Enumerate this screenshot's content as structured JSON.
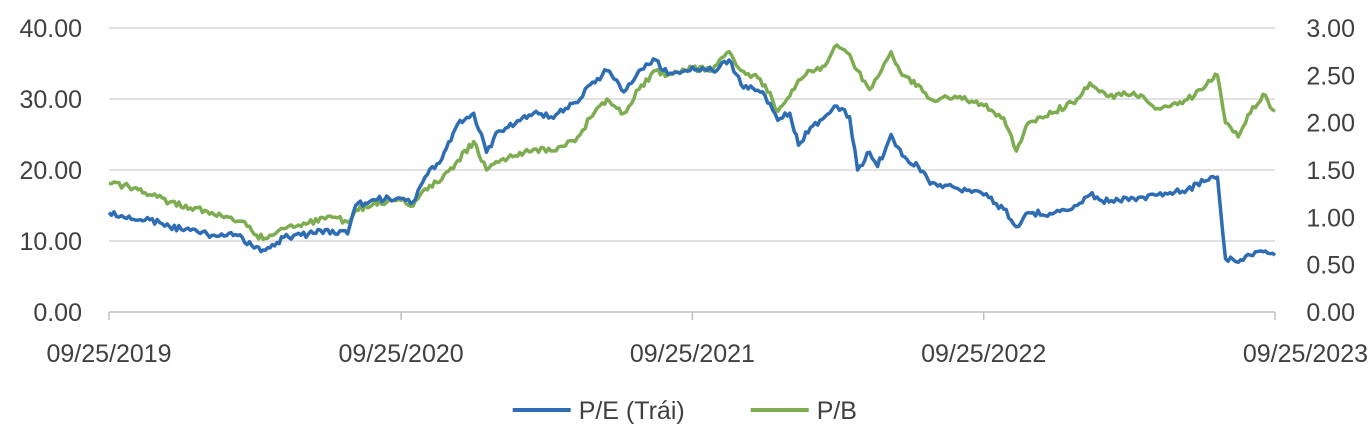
{
  "chart_data": {
    "type": "line",
    "title": "",
    "xlabel": "",
    "ylabel": "",
    "ylim": [
      0,
      40
    ],
    "y2lim": [
      0,
      3
    ],
    "grid": true,
    "legend_position": "bottom",
    "x_tick_labels": [
      "09/25/2019",
      "09/25/2020",
      "09/25/2021",
      "09/25/2022",
      "09/25/2023"
    ],
    "y_tick_labels": [
      "0.00",
      "10.00",
      "20.00",
      "30.00",
      "40.00"
    ],
    "y2_tick_labels": [
      "0.00",
      "0.50",
      "1.00",
      "1.50",
      "2.00",
      "2.50",
      "3.00"
    ],
    "series": [
      {
        "name": "P/E (Trái)",
        "axis": "left",
        "color": "#2E6DB4",
        "points": [
          [
            "2019-09-25",
            14.0
          ],
          [
            "2019-10-20",
            13.5
          ],
          [
            "2019-11-15",
            13.0
          ],
          [
            "2019-12-10",
            12.0
          ],
          [
            "2020-01-05",
            11.5
          ],
          [
            "2020-02-01",
            10.8
          ],
          [
            "2020-02-25",
            11.2
          ],
          [
            "2020-03-10",
            10.5
          ],
          [
            "2020-03-25",
            9.0
          ],
          [
            "2020-04-08",
            8.7
          ],
          [
            "2020-05-01",
            10.5
          ],
          [
            "2020-06-01",
            11.0
          ],
          [
            "2020-07-01",
            11.5
          ],
          [
            "2020-07-20",
            11.0
          ],
          [
            "2020-07-30",
            15.0
          ],
          [
            "2020-08-20",
            15.8
          ],
          [
            "2020-09-25",
            16.0
          ],
          [
            "2020-10-10",
            15.5
          ],
          [
            "2020-10-25",
            19.0
          ],
          [
            "2020-11-15",
            21.5
          ],
          [
            "2020-12-05",
            26.5
          ],
          [
            "2020-12-25",
            28.0
          ],
          [
            "2021-01-10",
            22.5
          ],
          [
            "2021-01-25",
            25.5
          ],
          [
            "2021-02-15",
            26.5
          ],
          [
            "2021-03-10",
            28.0
          ],
          [
            "2021-04-01",
            27.5
          ],
          [
            "2021-05-01",
            29.5
          ],
          [
            "2021-05-20",
            32.0
          ],
          [
            "2021-06-10",
            34.0
          ],
          [
            "2021-07-01",
            31.0
          ],
          [
            "2021-07-20",
            34.0
          ],
          [
            "2021-08-10",
            35.5
          ],
          [
            "2021-08-25",
            33.5
          ],
          [
            "2021-09-25",
            34.5
          ],
          [
            "2021-10-20",
            34.0
          ],
          [
            "2021-11-10",
            35.5
          ],
          [
            "2021-11-25",
            32.0
          ],
          [
            "2021-12-10",
            31.5
          ],
          [
            "2021-12-25",
            30.5
          ],
          [
            "2022-01-10",
            27.0
          ],
          [
            "2022-01-25",
            28.0
          ],
          [
            "2022-02-05",
            23.5
          ],
          [
            "2022-02-20",
            26.0
          ],
          [
            "2022-03-10",
            27.5
          ],
          [
            "2022-03-25",
            29.0
          ],
          [
            "2022-04-10",
            27.5
          ],
          [
            "2022-04-20",
            20.0
          ],
          [
            "2022-05-05",
            22.5
          ],
          [
            "2022-05-15",
            20.5
          ],
          [
            "2022-06-01",
            25.0
          ],
          [
            "2022-06-15",
            22.0
          ],
          [
            "2022-07-05",
            20.5
          ],
          [
            "2022-07-20",
            18.0
          ],
          [
            "2022-08-20",
            17.5
          ],
          [
            "2022-09-25",
            16.5
          ],
          [
            "2022-10-20",
            14.5
          ],
          [
            "2022-11-05",
            12.0
          ],
          [
            "2022-11-20",
            14.0
          ],
          [
            "2022-12-20",
            13.8
          ],
          [
            "2023-01-20",
            15.0
          ],
          [
            "2023-02-05",
            16.5
          ],
          [
            "2023-03-01",
            15.5
          ],
          [
            "2023-04-01",
            16.0
          ],
          [
            "2023-05-01",
            16.5
          ],
          [
            "2023-06-01",
            17.0
          ],
          [
            "2023-07-01",
            18.5
          ],
          [
            "2023-07-15",
            19.0
          ],
          [
            "2023-07-25",
            7.5
          ],
          [
            "2023-08-10",
            7.0
          ],
          [
            "2023-08-25",
            8.0
          ],
          [
            "2023-09-10",
            8.5
          ],
          [
            "2023-09-25",
            8.0
          ]
        ]
      },
      {
        "name": "P/B",
        "axis": "right",
        "color": "#7EAD51",
        "points": [
          [
            "2019-09-25",
            1.36
          ],
          [
            "2019-10-20",
            1.32
          ],
          [
            "2019-11-15",
            1.24
          ],
          [
            "2019-12-10",
            1.16
          ],
          [
            "2020-01-05",
            1.1
          ],
          [
            "2020-02-01",
            1.05
          ],
          [
            "2020-02-25",
            1.0
          ],
          [
            "2020-03-10",
            0.96
          ],
          [
            "2020-03-25",
            0.82
          ],
          [
            "2020-04-08",
            0.78
          ],
          [
            "2020-05-01",
            0.88
          ],
          [
            "2020-06-01",
            0.94
          ],
          [
            "2020-07-01",
            1.0
          ],
          [
            "2020-07-20",
            0.95
          ],
          [
            "2020-07-30",
            1.08
          ],
          [
            "2020-08-20",
            1.13
          ],
          [
            "2020-09-25",
            1.18
          ],
          [
            "2020-10-10",
            1.12
          ],
          [
            "2020-10-25",
            1.3
          ],
          [
            "2020-11-15",
            1.4
          ],
          [
            "2020-12-05",
            1.6
          ],
          [
            "2020-12-25",
            1.8
          ],
          [
            "2021-01-10",
            1.5
          ],
          [
            "2021-01-25",
            1.58
          ],
          [
            "2021-02-15",
            1.65
          ],
          [
            "2021-03-10",
            1.72
          ],
          [
            "2021-04-01",
            1.7
          ],
          [
            "2021-05-01",
            1.8
          ],
          [
            "2021-05-20",
            2.05
          ],
          [
            "2021-06-10",
            2.25
          ],
          [
            "2021-07-01",
            2.1
          ],
          [
            "2021-07-20",
            2.35
          ],
          [
            "2021-08-10",
            2.55
          ],
          [
            "2021-08-25",
            2.5
          ],
          [
            "2021-09-25",
            2.58
          ],
          [
            "2021-10-20",
            2.55
          ],
          [
            "2021-11-10",
            2.75
          ],
          [
            "2021-11-25",
            2.55
          ],
          [
            "2021-12-10",
            2.5
          ],
          [
            "2021-12-25",
            2.4
          ],
          [
            "2022-01-10",
            2.12
          ],
          [
            "2022-01-25",
            2.28
          ],
          [
            "2022-02-05",
            2.45
          ],
          [
            "2022-02-20",
            2.55
          ],
          [
            "2022-03-10",
            2.6
          ],
          [
            "2022-03-25",
            2.82
          ],
          [
            "2022-04-10",
            2.72
          ],
          [
            "2022-04-20",
            2.55
          ],
          [
            "2022-05-05",
            2.35
          ],
          [
            "2022-05-15",
            2.48
          ],
          [
            "2022-06-01",
            2.75
          ],
          [
            "2022-06-15",
            2.5
          ],
          [
            "2022-07-05",
            2.4
          ],
          [
            "2022-07-20",
            2.25
          ],
          [
            "2022-08-20",
            2.28
          ],
          [
            "2022-09-25",
            2.18
          ],
          [
            "2022-10-20",
            2.05
          ],
          [
            "2022-11-05",
            1.7
          ],
          [
            "2022-11-20",
            2.0
          ],
          [
            "2022-12-20",
            2.1
          ],
          [
            "2023-01-20",
            2.25
          ],
          [
            "2023-02-05",
            2.42
          ],
          [
            "2023-03-01",
            2.28
          ],
          [
            "2023-04-01",
            2.32
          ],
          [
            "2023-05-01",
            2.15
          ],
          [
            "2023-06-01",
            2.2
          ],
          [
            "2023-07-01",
            2.4
          ],
          [
            "2023-07-15",
            2.5
          ],
          [
            "2023-07-25",
            2.0
          ],
          [
            "2023-08-10",
            1.85
          ],
          [
            "2023-08-25",
            2.1
          ],
          [
            "2023-09-10",
            2.3
          ],
          [
            "2023-09-25",
            2.12
          ]
        ]
      }
    ]
  }
}
